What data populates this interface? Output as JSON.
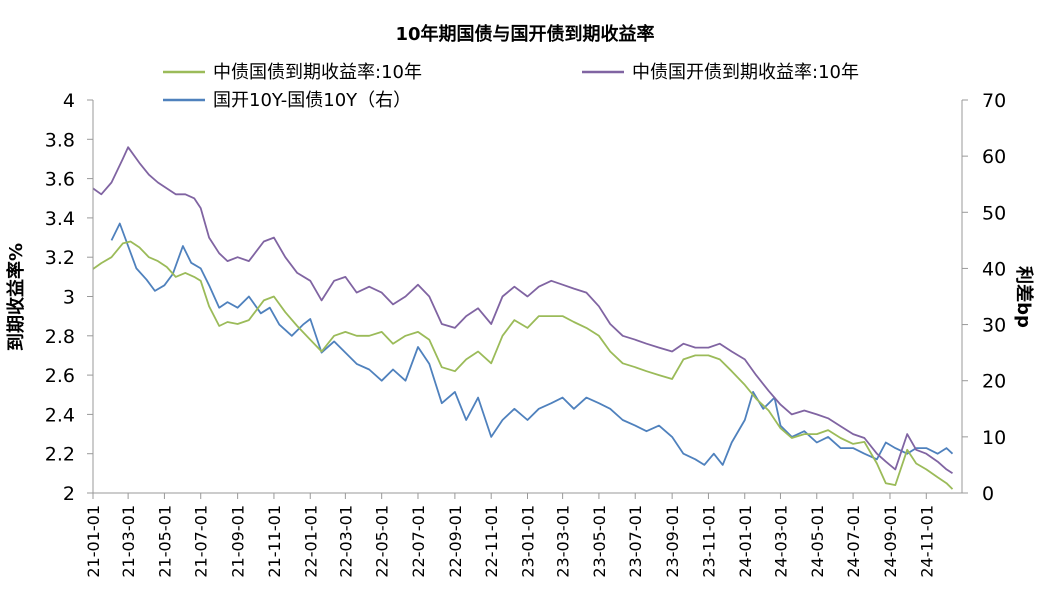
{
  "chart_data": {
    "type": "line",
    "title": "10年期国债与国开债到期收益率",
    "ylabel": "到期收益率%",
    "y2label": "利差bp",
    "ylim": [
      2,
      4
    ],
    "y2lim": [
      0,
      70
    ],
    "yticks": [
      "4",
      "3.8",
      "3.6",
      "3.4",
      "3.2",
      "3",
      "2.8",
      "2.6",
      "2.4",
      "2.2",
      "2"
    ],
    "y2ticks": [
      "70",
      "60",
      "50",
      "40",
      "30",
      "20",
      "10",
      "0"
    ],
    "xticks": [
      "21-01-01",
      "21-03-01",
      "21-05-01",
      "21-07-01",
      "21-09-01",
      "21-11-01",
      "22-01-01",
      "22-03-01",
      "22-05-01",
      "22-07-01",
      "22-09-01",
      "22-11-01",
      "23-01-01",
      "23-03-01",
      "23-05-01",
      "23-07-01",
      "23-09-01",
      "23-11-01",
      "24-01-01",
      "24-03-01",
      "24-05-01",
      "24-07-01",
      "24-09-01",
      "24-11-01"
    ],
    "legend_placement": "top",
    "grid": false,
    "series": [
      {
        "name": "中债国债到期收益率:10年",
        "axis": "left",
        "color": "#9bbb59",
        "points": [
          [
            "21-01-01",
            3.14
          ],
          [
            "21-01-15",
            3.17
          ],
          [
            "21-02-01",
            3.2
          ],
          [
            "21-02-20",
            3.27
          ],
          [
            "21-03-05",
            3.28
          ],
          [
            "21-03-20",
            3.25
          ],
          [
            "21-04-05",
            3.2
          ],
          [
            "21-04-20",
            3.18
          ],
          [
            "21-05-05",
            3.15
          ],
          [
            "21-05-20",
            3.1
          ],
          [
            "21-06-05",
            3.12
          ],
          [
            "21-06-20",
            3.1
          ],
          [
            "21-07-01",
            3.08
          ],
          [
            "21-07-15",
            2.95
          ],
          [
            "21-08-01",
            2.85
          ],
          [
            "21-08-15",
            2.87
          ],
          [
            "21-09-01",
            2.86
          ],
          [
            "21-09-20",
            2.88
          ],
          [
            "21-10-15",
            2.98
          ],
          [
            "21-11-01",
            3.0
          ],
          [
            "21-11-20",
            2.92
          ],
          [
            "21-12-10",
            2.85
          ],
          [
            "22-01-01",
            2.78
          ],
          [
            "22-01-20",
            2.72
          ],
          [
            "22-02-10",
            2.8
          ],
          [
            "22-03-01",
            2.82
          ],
          [
            "22-03-20",
            2.8
          ],
          [
            "22-04-10",
            2.8
          ],
          [
            "22-05-01",
            2.82
          ],
          [
            "22-05-20",
            2.76
          ],
          [
            "22-06-10",
            2.8
          ],
          [
            "22-07-01",
            2.82
          ],
          [
            "22-07-20",
            2.78
          ],
          [
            "22-08-10",
            2.64
          ],
          [
            "22-09-01",
            2.62
          ],
          [
            "22-09-20",
            2.68
          ],
          [
            "22-10-10",
            2.72
          ],
          [
            "22-11-01",
            2.66
          ],
          [
            "22-11-20",
            2.8
          ],
          [
            "22-12-10",
            2.88
          ],
          [
            "23-01-01",
            2.84
          ],
          [
            "23-01-20",
            2.9
          ],
          [
            "23-02-10",
            2.9
          ],
          [
            "23-03-01",
            2.9
          ],
          [
            "23-03-20",
            2.87
          ],
          [
            "23-04-10",
            2.84
          ],
          [
            "23-05-01",
            2.8
          ],
          [
            "23-05-20",
            2.72
          ],
          [
            "23-06-10",
            2.66
          ],
          [
            "23-07-01",
            2.64
          ],
          [
            "23-07-20",
            2.62
          ],
          [
            "23-08-10",
            2.6
          ],
          [
            "23-09-01",
            2.58
          ],
          [
            "23-09-20",
            2.68
          ],
          [
            "23-10-10",
            2.7
          ],
          [
            "23-11-01",
            2.7
          ],
          [
            "23-11-20",
            2.68
          ],
          [
            "23-12-10",
            2.62
          ],
          [
            "24-01-01",
            2.55
          ],
          [
            "24-01-20",
            2.48
          ],
          [
            "24-02-10",
            2.42
          ],
          [
            "24-03-01",
            2.33
          ],
          [
            "24-03-20",
            2.28
          ],
          [
            "24-04-10",
            2.3
          ],
          [
            "24-05-01",
            2.3
          ],
          [
            "24-05-20",
            2.32
          ],
          [
            "24-06-10",
            2.28
          ],
          [
            "24-07-01",
            2.25
          ],
          [
            "24-07-20",
            2.26
          ],
          [
            "24-08-10",
            2.15
          ],
          [
            "24-08-25",
            2.05
          ],
          [
            "24-09-10",
            2.04
          ],
          [
            "24-09-30",
            2.22
          ],
          [
            "24-10-15",
            2.15
          ],
          [
            "24-11-01",
            2.12
          ],
          [
            "24-11-20",
            2.08
          ],
          [
            "24-12-05",
            2.05
          ],
          [
            "24-12-15",
            2.02
          ]
        ]
      },
      {
        "name": "中债国开债到期收益率:10年",
        "axis": "left",
        "color": "#8064a2",
        "points": [
          [
            "21-01-01",
            3.55
          ],
          [
            "21-01-15",
            3.52
          ],
          [
            "21-02-01",
            3.58
          ],
          [
            "21-02-20",
            3.7
          ],
          [
            "21-03-01",
            3.76
          ],
          [
            "21-03-20",
            3.68
          ],
          [
            "21-04-05",
            3.62
          ],
          [
            "21-04-20",
            3.58
          ],
          [
            "21-05-05",
            3.55
          ],
          [
            "21-05-20",
            3.52
          ],
          [
            "21-06-05",
            3.52
          ],
          [
            "21-06-20",
            3.5
          ],
          [
            "21-07-01",
            3.45
          ],
          [
            "21-07-15",
            3.3
          ],
          [
            "21-08-01",
            3.22
          ],
          [
            "21-08-15",
            3.18
          ],
          [
            "21-09-01",
            3.2
          ],
          [
            "21-09-20",
            3.18
          ],
          [
            "21-10-15",
            3.28
          ],
          [
            "21-11-01",
            3.3
          ],
          [
            "21-11-20",
            3.2
          ],
          [
            "21-12-10",
            3.12
          ],
          [
            "22-01-01",
            3.08
          ],
          [
            "22-01-20",
            2.98
          ],
          [
            "22-02-10",
            3.08
          ],
          [
            "22-03-01",
            3.1
          ],
          [
            "22-03-20",
            3.02
          ],
          [
            "22-04-10",
            3.05
          ],
          [
            "22-05-01",
            3.02
          ],
          [
            "22-05-20",
            2.96
          ],
          [
            "22-06-10",
            3.0
          ],
          [
            "22-07-01",
            3.06
          ],
          [
            "22-07-20",
            3.0
          ],
          [
            "22-08-10",
            2.86
          ],
          [
            "22-09-01",
            2.84
          ],
          [
            "22-09-20",
            2.9
          ],
          [
            "22-10-10",
            2.94
          ],
          [
            "22-11-01",
            2.86
          ],
          [
            "22-11-20",
            3.0
          ],
          [
            "22-12-10",
            3.05
          ],
          [
            "23-01-01",
            3.0
          ],
          [
            "23-01-20",
            3.05
          ],
          [
            "23-02-10",
            3.08
          ],
          [
            "23-03-01",
            3.06
          ],
          [
            "23-03-20",
            3.04
          ],
          [
            "23-04-10",
            3.02
          ],
          [
            "23-05-01",
            2.95
          ],
          [
            "23-05-20",
            2.86
          ],
          [
            "23-06-10",
            2.8
          ],
          [
            "23-07-01",
            2.78
          ],
          [
            "23-07-20",
            2.76
          ],
          [
            "23-08-10",
            2.74
          ],
          [
            "23-09-01",
            2.72
          ],
          [
            "23-09-20",
            2.76
          ],
          [
            "23-10-10",
            2.74
          ],
          [
            "23-11-01",
            2.74
          ],
          [
            "23-11-20",
            2.76
          ],
          [
            "23-12-10",
            2.72
          ],
          [
            "24-01-01",
            2.68
          ],
          [
            "24-01-20",
            2.6
          ],
          [
            "24-02-10",
            2.52
          ],
          [
            "24-03-01",
            2.45
          ],
          [
            "24-03-20",
            2.4
          ],
          [
            "24-04-10",
            2.42
          ],
          [
            "24-05-01",
            2.4
          ],
          [
            "24-05-20",
            2.38
          ],
          [
            "24-06-10",
            2.34
          ],
          [
            "24-07-01",
            2.3
          ],
          [
            "24-07-20",
            2.28
          ],
          [
            "24-08-10",
            2.2
          ],
          [
            "24-08-25",
            2.16
          ],
          [
            "24-09-10",
            2.12
          ],
          [
            "24-09-30",
            2.3
          ],
          [
            "24-10-15",
            2.22
          ],
          [
            "24-11-01",
            2.2
          ],
          [
            "24-11-20",
            2.16
          ],
          [
            "24-12-05",
            2.12
          ],
          [
            "24-12-15",
            2.1
          ]
        ]
      },
      {
        "name": "国开10Y-国债10Y（右）",
        "axis": "right",
        "color": "#4f81bd",
        "points": [
          [
            "21-02-01",
            45
          ],
          [
            "21-02-15",
            48
          ],
          [
            "21-03-01",
            44
          ],
          [
            "21-03-15",
            40
          ],
          [
            "21-04-01",
            38
          ],
          [
            "21-04-15",
            36
          ],
          [
            "21-05-01",
            37
          ],
          [
            "21-05-15",
            39
          ],
          [
            "21-06-01",
            44
          ],
          [
            "21-06-15",
            41
          ],
          [
            "21-07-01",
            40
          ],
          [
            "21-07-15",
            37
          ],
          [
            "21-08-01",
            33
          ],
          [
            "21-08-15",
            34
          ],
          [
            "21-09-01",
            33
          ],
          [
            "21-09-20",
            35
          ],
          [
            "21-10-10",
            32
          ],
          [
            "21-10-25",
            33
          ],
          [
            "21-11-10",
            30
          ],
          [
            "21-12-01",
            28
          ],
          [
            "21-12-20",
            30
          ],
          [
            "22-01-01",
            31
          ],
          [
            "22-01-20",
            25
          ],
          [
            "22-02-10",
            27
          ],
          [
            "22-03-01",
            25
          ],
          [
            "22-03-20",
            23
          ],
          [
            "22-04-10",
            22
          ],
          [
            "22-05-01",
            20
          ],
          [
            "22-05-20",
            22
          ],
          [
            "22-06-10",
            20
          ],
          [
            "22-07-01",
            26
          ],
          [
            "22-07-20",
            23
          ],
          [
            "22-08-10",
            16
          ],
          [
            "22-09-01",
            18
          ],
          [
            "22-09-20",
            13
          ],
          [
            "22-10-10",
            17
          ],
          [
            "22-11-01",
            10
          ],
          [
            "22-11-20",
            13
          ],
          [
            "22-12-10",
            15
          ],
          [
            "23-01-01",
            13
          ],
          [
            "23-01-20",
            15
          ],
          [
            "23-02-10",
            16
          ],
          [
            "23-03-01",
            17
          ],
          [
            "23-03-20",
            15
          ],
          [
            "23-04-10",
            17
          ],
          [
            "23-05-01",
            16
          ],
          [
            "23-05-20",
            15
          ],
          [
            "23-06-10",
            13
          ],
          [
            "23-07-01",
            12
          ],
          [
            "23-07-20",
            11
          ],
          [
            "23-08-10",
            12
          ],
          [
            "23-09-01",
            10
          ],
          [
            "23-09-20",
            7
          ],
          [
            "23-10-10",
            6
          ],
          [
            "23-10-25",
            5
          ],
          [
            "23-11-10",
            7
          ],
          [
            "23-11-25",
            5
          ],
          [
            "23-12-10",
            9
          ],
          [
            "24-01-01",
            13
          ],
          [
            "24-01-15",
            18
          ],
          [
            "24-02-01",
            15
          ],
          [
            "24-02-20",
            17
          ],
          [
            "24-03-01",
            12
          ],
          [
            "24-03-20",
            10
          ],
          [
            "24-04-10",
            11
          ],
          [
            "24-05-01",
            9
          ],
          [
            "24-05-20",
            10
          ],
          [
            "24-06-10",
            8
          ],
          [
            "24-07-01",
            8
          ],
          [
            "24-07-20",
            7
          ],
          [
            "24-08-10",
            6
          ],
          [
            "24-08-25",
            9
          ],
          [
            "24-09-10",
            8
          ],
          [
            "24-09-30",
            7
          ],
          [
            "24-10-15",
            8
          ],
          [
            "24-11-01",
            8
          ],
          [
            "24-11-20",
            7
          ],
          [
            "24-12-05",
            8
          ],
          [
            "24-12-15",
            7
          ]
        ]
      }
    ]
  }
}
